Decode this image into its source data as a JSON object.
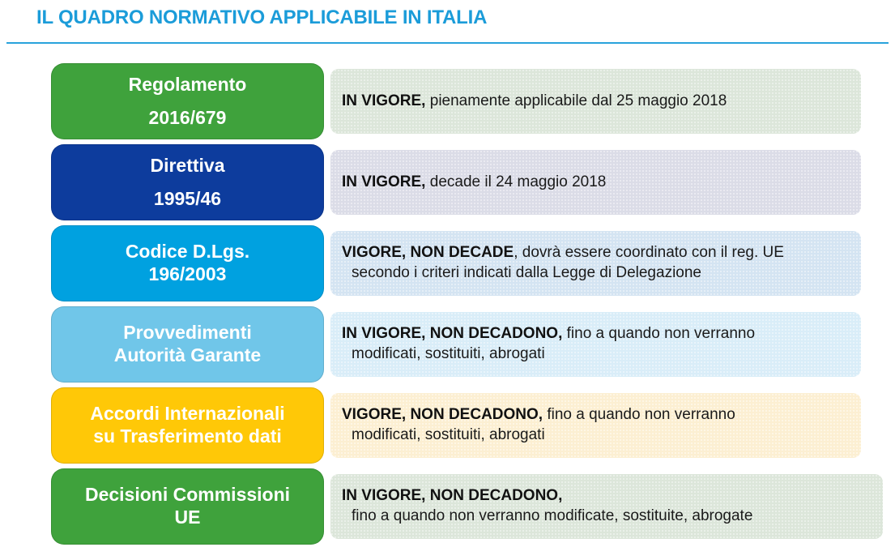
{
  "title": "IL QUADRO NORMATIVO APPLICABILE IN ITALIA",
  "colors": {
    "title_text": "#1b9cd9",
    "title_rule": "#29a3dc",
    "label_green": "#3fa23c",
    "label_navy": "#0d3c9d",
    "label_cyan": "#00a1e0",
    "label_sky": "#70c6e9",
    "label_gold": "#ffc807",
    "desc_green": "#dce6da",
    "desc_lavender": "#dbdce7",
    "desc_blue": "#d4e4f2",
    "desc_sky": "#d9edf8",
    "desc_cream": "#fcefd2"
  },
  "rows": [
    {
      "label_line1": "Regolamento",
      "label_line2": "2016/679",
      "label_color": "#3fa23c",
      "desc_bg": "#dce6da",
      "status_bold": "IN VIGORE,",
      "status_rest": " pienamente applicabile dal 25 maggio 2018",
      "status_line2": ""
    },
    {
      "label_line1": "Direttiva",
      "label_line2": "1995/46",
      "label_color": "#0d3c9d",
      "desc_bg": "#dbdce7",
      "status_bold": "IN VIGORE,",
      "status_rest": " decade il 24 maggio 2018",
      "status_line2": ""
    },
    {
      "label_line1": "Codice D.Lgs.",
      "label_line2": "196/2003",
      "label_color": "#00a1e0",
      "desc_bg": "#d4e4f2",
      "status_bold": "VIGORE, NON DECADE",
      "status_rest": ", dovrà essere coordinato con il reg. UE",
      "status_line2": "secondo i criteri indicati dalla Legge di Delegazione"
    },
    {
      "label_line1": "Provvedimenti",
      "label_line2": "Autorità Garante",
      "label_color": "#70c6e9",
      "desc_bg": "#d9edf8",
      "status_bold": "IN VIGORE, NON DECADONO,",
      "status_rest": " fino a quando non verranno",
      "status_line2": "modificati, sostituiti, abrogati"
    },
    {
      "label_line1": "Accordi Internazionali",
      "label_line2": "su Trasferimento dati",
      "label_color": "#ffc807",
      "desc_bg": "#fcefd2",
      "status_bold": "VIGORE, NON DECADONO,",
      "status_rest": " fino a quando non verranno",
      "status_line2": "modificati, sostituiti, abrogati"
    },
    {
      "label_line1": "Decisioni Commissioni",
      "label_line2": "UE",
      "label_color": "#3fa23c",
      "desc_bg": "#dce6da",
      "status_bold": "IN VIGORE, NON DECADONO,",
      "status_rest": "",
      "status_line2": "fino a quando non verranno modificate, sostituite, abrogate"
    }
  ]
}
